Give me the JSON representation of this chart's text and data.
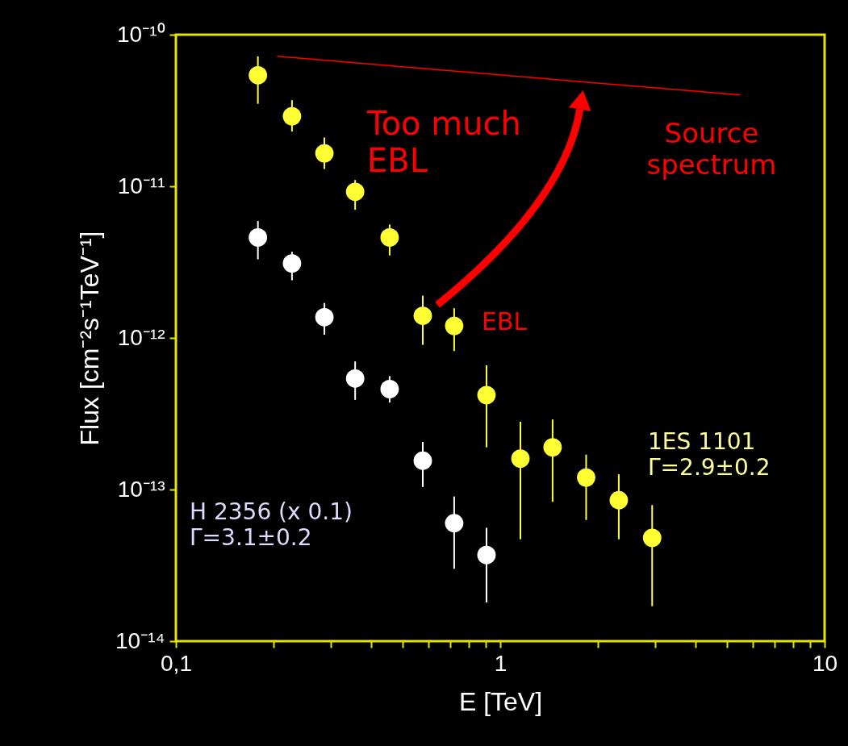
{
  "chart_data": {
    "type": "scatter",
    "xlabel": "E [TeV]",
    "ylabel": "Flux [cm⁻²s⁻¹TeV⁻¹]",
    "log": "xy",
    "marker": "circle",
    "xlim": [
      0.1,
      10
    ],
    "ylim": [
      1e-14,
      1e-10
    ],
    "xticks": [
      {
        "value": 0.1,
        "label": "0,1"
      },
      {
        "value": 0.2,
        "label": null
      },
      {
        "value": 0.3,
        "label": null
      },
      {
        "value": 0.4,
        "label": null
      },
      {
        "value": 0.5,
        "label": null
      },
      {
        "value": 0.6,
        "label": null
      },
      {
        "value": 0.7,
        "label": null
      },
      {
        "value": 0.8,
        "label": null
      },
      {
        "value": 0.9,
        "label": null
      },
      1,
      {
        "value": 2,
        "label": null
      },
      {
        "value": 3,
        "label": null
      },
      {
        "value": 4,
        "label": null
      },
      {
        "value": 5,
        "label": null
      },
      {
        "value": 6,
        "label": null
      },
      {
        "value": 7,
        "label": null
      },
      {
        "value": 8,
        "label": null
      },
      {
        "value": 9,
        "label": null
      },
      10
    ],
    "yticks": [
      {
        "value": 1e-14,
        "label": "10⁻¹⁴"
      },
      {
        "value": 1e-13,
        "label": "10⁻¹³"
      },
      {
        "value": 1e-12,
        "label": "10⁻¹²"
      },
      {
        "value": 1e-11,
        "label": "10⁻¹¹"
      },
      {
        "value": 1e-10,
        "label": "10⁻¹⁰"
      }
    ],
    "series": [
      {
        "color": "#ffff33",
        "x": [
          0.179,
          0.228,
          0.287,
          0.357,
          0.456,
          0.577,
          0.721,
          0.907,
          1.154,
          1.45,
          1.84,
          2.32,
          2.94
        ],
        "values": [
          5.4e-11,
          2.9e-11,
          1.65e-11,
          9.2e-12,
          4.6e-12,
          1.4e-12,
          1.2e-12,
          4.2e-13,
          1.6e-13,
          1.9e-13,
          1.2e-13,
          8.5e-14,
          4.8e-14
        ],
        "errors": [
          [
            3.5e-11,
            7.2e-11
          ],
          [
            2.3e-11,
            3.7e-11
          ],
          [
            1.3e-11,
            2.1e-11
          ],
          [
            7e-12,
            1.1e-11
          ],
          [
            3.5e-12,
            5.6e-12
          ],
          [
            9e-13,
            1.9e-12
          ],
          [
            8.2e-13,
            1.57e-12
          ],
          [
            1.9e-13,
            6.6e-13
          ],
          [
            4.7e-14,
            2.8e-13
          ],
          [
            8.3e-14,
            2.9e-13
          ],
          [
            6.3e-14,
            1.7e-13
          ],
          [
            4.7e-14,
            1.26e-13
          ],
          [
            1.7e-14,
            7.9e-14
          ]
        ]
      },
      {
        "color": "#ffffff",
        "x": [
          0.179,
          0.228,
          0.287,
          0.357,
          0.456,
          0.577,
          0.721,
          0.907
        ],
        "values": [
          4.6e-12,
          3.1e-12,
          1.37e-12,
          5.4e-13,
          4.6e-13,
          1.55e-13,
          6e-14,
          3.7e-14
        ],
        "errors": [
          [
            3.3e-12,
            5.9e-12
          ],
          [
            2.4e-12,
            3.7e-12
          ],
          [
            1.05e-12,
            1.7e-12
          ],
          [
            3.9e-13,
            7e-13
          ],
          [
            3.75e-13,
            5.6e-13
          ],
          [
            1.04e-13,
            2.06e-13
          ],
          [
            3e-14,
            9e-14
          ],
          [
            1.8e-14,
            5.6e-14
          ]
        ]
      },
      {
        "type": "line",
        "marker": "none",
        "color": "#ff0000",
        "x": [
          0.205,
          5.5
        ],
        "values": [
          7.2e-11,
          4e-11
        ]
      }
    ],
    "annotations": [
      "Too much\nEBL",
      "Source\nspectrum",
      "EBL",
      "1ES 1101\n Γ=2.9±0.2",
      "H 2356 (x 0.1)\nΓ=3.1±0.2"
    ]
  }
}
